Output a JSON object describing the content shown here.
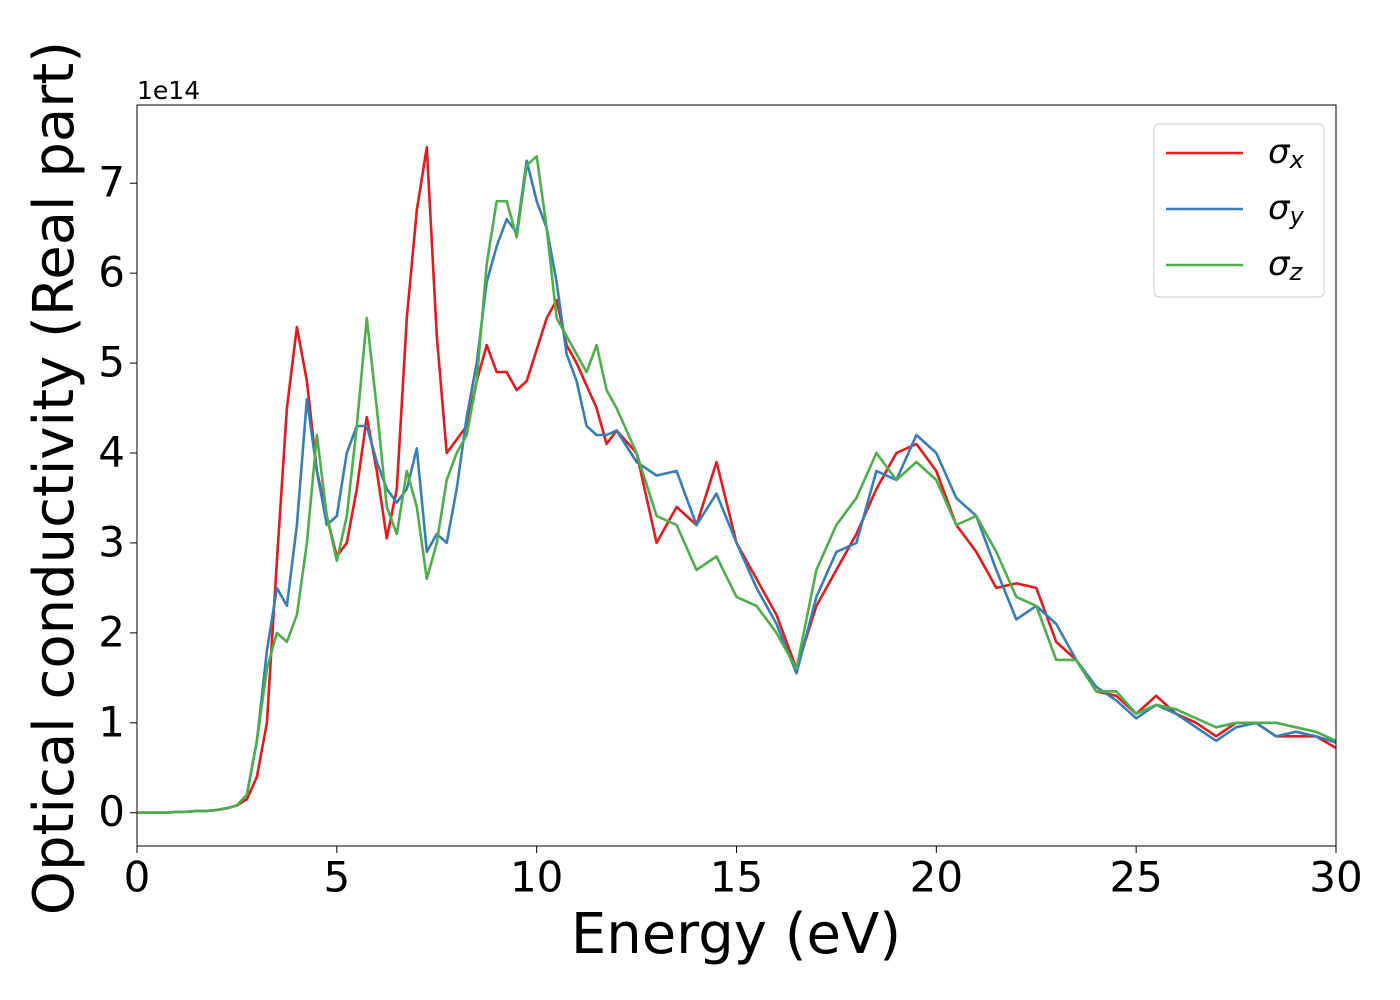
{
  "chart_data": {
    "type": "line",
    "offset_label": "1e14",
    "xlabel": "Energy (eV)",
    "ylabel": "Optical conductivity (Real part)",
    "x": [
      0,
      0.25,
      0.5,
      0.75,
      1,
      1.25,
      1.5,
      1.75,
      2,
      2.25,
      2.5,
      2.75,
      3,
      3.25,
      3.5,
      3.75,
      4,
      4.25,
      4.5,
      4.75,
      5,
      5.25,
      5.5,
      5.75,
      6,
      6.25,
      6.5,
      6.75,
      7,
      7.25,
      7.5,
      7.75,
      8,
      8.25,
      8.5,
      8.75,
      9,
      9.25,
      9.5,
      9.75,
      10,
      10.25,
      10.5,
      10.75,
      11,
      11.25,
      11.5,
      11.75,
      12,
      12.5,
      13,
      13.5,
      14,
      14.5,
      15,
      15.5,
      16,
      16.5,
      17,
      17.5,
      18,
      18.5,
      19,
      19.5,
      20,
      20.5,
      21,
      21.5,
      22,
      22.5,
      23,
      23.5,
      24,
      24.5,
      25,
      25.5,
      26,
      26.5,
      27,
      27.5,
      28,
      28.5,
      29,
      29.5,
      30
    ],
    "series": [
      {
        "name": "σx",
        "color": "#e41a1c",
        "values": [
          0,
          0,
          0,
          0,
          0.01,
          0.01,
          0.02,
          0.02,
          0.03,
          0.05,
          0.08,
          0.15,
          0.4,
          1.0,
          2.8,
          4.5,
          5.4,
          4.8,
          3.8,
          3.3,
          2.85,
          3.0,
          3.6,
          4.4,
          3.8,
          3.05,
          3.6,
          5.5,
          6.7,
          7.4,
          5.3,
          4.0,
          4.15,
          4.3,
          4.8,
          5.2,
          4.9,
          4.9,
          4.7,
          4.8,
          5.15,
          5.5,
          5.7,
          5.2,
          5.0,
          4.75,
          4.5,
          4.1,
          4.25,
          4.0,
          3.0,
          3.4,
          3.2,
          3.9,
          3.0,
          2.6,
          2.2,
          1.6,
          2.3,
          2.7,
          3.1,
          3.6,
          4.0,
          4.1,
          3.8,
          3.2,
          2.9,
          2.5,
          2.55,
          2.5,
          1.9,
          1.7,
          1.35,
          1.3,
          1.1,
          1.3,
          1.1,
          1.0,
          0.85,
          1.0,
          1.0,
          0.85,
          0.85,
          0.85,
          0.72
        ]
      },
      {
        "name": "σy",
        "color": "#377eb8",
        "values": [
          0,
          0,
          0,
          0,
          0.01,
          0.01,
          0.02,
          0.02,
          0.03,
          0.05,
          0.08,
          0.2,
          0.8,
          1.8,
          2.5,
          2.3,
          3.2,
          4.6,
          3.8,
          3.2,
          3.3,
          4.0,
          4.3,
          4.3,
          3.9,
          3.6,
          3.45,
          3.6,
          4.05,
          2.9,
          3.1,
          3.0,
          3.6,
          4.4,
          5.0,
          5.9,
          6.3,
          6.6,
          6.45,
          7.25,
          6.8,
          6.5,
          5.9,
          5.1,
          4.8,
          4.3,
          4.2,
          4.2,
          4.25,
          3.9,
          3.75,
          3.8,
          3.2,
          3.55,
          3.0,
          2.5,
          2.1,
          1.55,
          2.4,
          2.9,
          3.0,
          3.8,
          3.7,
          4.2,
          4.0,
          3.5,
          3.3,
          2.7,
          2.15,
          2.3,
          2.1,
          1.7,
          1.4,
          1.25,
          1.05,
          1.2,
          1.1,
          0.95,
          0.8,
          0.95,
          1.0,
          0.85,
          0.9,
          0.85,
          0.78
        ]
      },
      {
        "name": "σz",
        "color": "#4daf4a",
        "values": [
          0,
          0,
          0,
          0,
          0.01,
          0.01,
          0.02,
          0.02,
          0.03,
          0.05,
          0.08,
          0.2,
          0.8,
          1.6,
          2.0,
          1.9,
          2.2,
          3.0,
          4.2,
          3.3,
          2.8,
          3.3,
          4.3,
          5.5,
          4.5,
          3.4,
          3.1,
          3.8,
          3.4,
          2.6,
          3.0,
          3.7,
          4.0,
          4.2,
          4.8,
          6.1,
          6.8,
          6.8,
          6.4,
          7.2,
          7.3,
          6.5,
          5.5,
          5.3,
          5.1,
          4.9,
          5.2,
          4.7,
          4.5,
          4.0,
          3.3,
          3.2,
          2.7,
          2.85,
          2.4,
          2.3,
          2.0,
          1.6,
          2.7,
          3.2,
          3.5,
          4.0,
          3.7,
          3.9,
          3.7,
          3.2,
          3.3,
          2.9,
          2.4,
          2.3,
          1.7,
          1.7,
          1.35,
          1.35,
          1.1,
          1.2,
          1.15,
          1.05,
          0.95,
          1.0,
          1.0,
          1.0,
          0.95,
          0.9,
          0.8
        ]
      }
    ],
    "xlim": [
      0,
      30
    ],
    "xticks": [
      0,
      5,
      10,
      15,
      20,
      25,
      30
    ],
    "ylim": [
      -0.37,
      7.87
    ],
    "yticks": [
      0,
      1,
      2,
      3,
      4,
      5,
      6,
      7
    ],
    "grid": false,
    "legend": "upper right"
  }
}
